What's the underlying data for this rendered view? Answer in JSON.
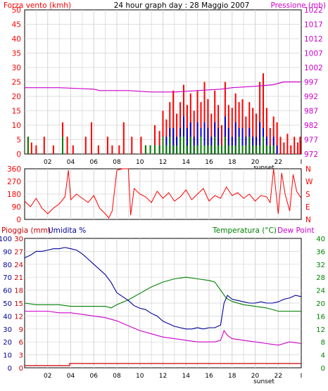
{
  "header": {
    "left_label": "Forza vento (kmh)",
    "title": "24 hour graph day : 28 Maggio 2007",
    "right_label": "Pressione (mb)"
  },
  "colors": {
    "wind": "#ff0000",
    "gust": "#0000c8",
    "wind_secondary": "#008000",
    "pressure": "#cc00cc",
    "direction": "#ff0000",
    "humidity": "#000099",
    "temperature": "#008000",
    "dewpoint": "#cc00cc",
    "rain": "#cc0000",
    "grid": "#d4d4d4"
  },
  "x_axis": {
    "ticks": [
      "02",
      "04",
      "06",
      "08",
      "10",
      "12",
      "14",
      "16",
      "18",
      "20",
      "22",
      "I"
    ],
    "sunset_label": "sunset"
  },
  "chart_data": [
    {
      "id": "wind",
      "type": "bar",
      "title": "24 hour graph day : 28 Maggio 2007",
      "ylabel_left": "Forza vento (kmh)",
      "ylabel_right": "Pressione (mb)",
      "ylim_left": [
        0,
        50
      ],
      "yticks_left": [
        "0",
        "5",
        "10",
        "15",
        "20",
        "25",
        "30",
        "35",
        "40",
        "45",
        "50"
      ],
      "ylim_right": [
        972,
        1022
      ],
      "yticks_right": [
        "972",
        "977",
        "982",
        "987",
        "992",
        "997",
        "1002",
        "1007",
        "1012",
        "1017",
        "1022"
      ],
      "grid": true,
      "x_hours": [
        0.3,
        0.6,
        1.0,
        1.7,
        2.5,
        3.3,
        3.7,
        4.2,
        5.3,
        5.8,
        6.4,
        7.2,
        7.6,
        8.2,
        8.6,
        9.3,
        10.1,
        10.5,
        10.9,
        11.3,
        11.7,
        12.0,
        12.3,
        12.6,
        12.9,
        13.2,
        13.5,
        13.8,
        14.1,
        14.4,
        14.7,
        15.0,
        15.3,
        15.6,
        15.9,
        16.2,
        16.5,
        16.8,
        17.1,
        17.4,
        17.7,
        18.0,
        18.3,
        18.6,
        18.9,
        19.2,
        19.5,
        19.8,
        20.1,
        20.4,
        20.7,
        21.0,
        21.3,
        21.6,
        21.9,
        22.2,
        22.5,
        22.8,
        23.1,
        23.4,
        23.7,
        23.9
      ],
      "series": [
        {
          "name": "Forza vento (kmh)",
          "role": "wind",
          "values": [
            6,
            4,
            3,
            6,
            3,
            11,
            6,
            3,
            6,
            11,
            3,
            6,
            3,
            3,
            11,
            6,
            6,
            3,
            3,
            10,
            8,
            15,
            12,
            18,
            22,
            14,
            18,
            24,
            17,
            21,
            15,
            22,
            18,
            25,
            19,
            14,
            22,
            17,
            10,
            25,
            17,
            16,
            21,
            18,
            19,
            13,
            18,
            16,
            14,
            25,
            28,
            16,
            9,
            13,
            11,
            6,
            4,
            7,
            3,
            6,
            4,
            6
          ]
        },
        {
          "name": "",
          "role": "gust",
          "values": [
            0,
            0,
            0,
            0,
            0,
            0,
            0,
            0,
            0,
            0,
            0,
            0,
            0,
            0,
            0,
            0,
            0,
            0,
            0,
            3,
            3,
            6,
            6,
            9,
            9,
            6,
            9,
            13,
            9,
            11,
            6,
            11,
            9,
            11,
            9,
            6,
            11,
            9,
            3,
            13,
            9,
            6,
            11,
            9,
            9,
            6,
            9,
            6,
            6,
            11,
            9,
            6,
            3,
            6,
            3,
            0,
            0,
            0,
            0,
            0,
            0,
            0
          ]
        },
        {
          "name": "",
          "role": "wind_secondary",
          "values": [
            6,
            0,
            0,
            0,
            0,
            6,
            0,
            0,
            0,
            0,
            0,
            0,
            0,
            0,
            0,
            0,
            0,
            3,
            3,
            3,
            3,
            6,
            3,
            6,
            3,
            3,
            6,
            6,
            3,
            6,
            3,
            3,
            6,
            3,
            3,
            3,
            6,
            3,
            3,
            6,
            3,
            3,
            3,
            6,
            3,
            3,
            6,
            3,
            3,
            3,
            6,
            3,
            3,
            3,
            0,
            0,
            0,
            0,
            0,
            0,
            0,
            0
          ]
        },
        {
          "name": "Pressione (mb)",
          "role": "pressure",
          "x": [
            0,
            3,
            6,
            6.5,
            9,
            11,
            13,
            15,
            17,
            18,
            20,
            21.5,
            22.5,
            24
          ],
          "values": [
            995,
            995,
            994.5,
            994,
            994,
            993.5,
            993.5,
            994,
            994.5,
            995,
            995.5,
            996,
            997,
            997
          ]
        }
      ]
    },
    {
      "id": "direction",
      "type": "line",
      "ylim_left": [
        0,
        360
      ],
      "yticks_left": [
        "0",
        "90",
        "180",
        "270",
        "360"
      ],
      "yticks_right": [
        "N",
        "E",
        "S",
        "W",
        "N"
      ],
      "grid": true,
      "series": [
        {
          "name": "",
          "role": "direction",
          "x": [
            0,
            0.5,
            1.0,
            1.5,
            2.0,
            2.5,
            3.0,
            3.5,
            3.8,
            4.0,
            4.5,
            5.0,
            5.5,
            6.0,
            6.5,
            7.0,
            7.3,
            7.6,
            8.0,
            8.5,
            9.0,
            9.2,
            9.5,
            10.0,
            10.5,
            11.0,
            11.5,
            12.0,
            12.5,
            13.0,
            13.5,
            14.0,
            14.5,
            15.0,
            15.5,
            16.0,
            16.5,
            17.0,
            17.5,
            18.0,
            18.5,
            19.0,
            19.5,
            20.0,
            20.5,
            21.0,
            21.3,
            21.6,
            22.0,
            22.3,
            22.6,
            23.0,
            23.3,
            23.6,
            24.0
          ],
          "values": [
            130,
            90,
            150,
            80,
            40,
            80,
            110,
            160,
            350,
            140,
            180,
            150,
            120,
            170,
            80,
            40,
            10,
            60,
            350,
            360,
            360,
            30,
            220,
            180,
            160,
            120,
            200,
            150,
            190,
            130,
            160,
            210,
            140,
            180,
            220,
            130,
            170,
            150,
            230,
            170,
            190,
            150,
            180,
            130,
            170,
            160,
            120,
            360,
            40,
            330,
            180,
            60,
            320,
            200,
            150
          ]
        }
      ]
    },
    {
      "id": "temperature",
      "type": "line",
      "ylabel_left_rain": "Pioggia (mm)",
      "ylabel_left_humidity": "Umidita %",
      "ylabel_right_temp": "Temperatura (°C)",
      "ylabel_right_dew": "Dew Point",
      "ylim_humidity": [
        0,
        100
      ],
      "yticks_humidity": [
        "0",
        "10",
        "20",
        "30",
        "40",
        "50",
        "60",
        "70",
        "80",
        "90",
        "100"
      ],
      "ylim_rain": [
        0,
        30
      ],
      "yticks_rain": [
        "0",
        "3",
        "6",
        "9",
        "12",
        "15",
        "18",
        "21",
        "24",
        "27",
        "30"
      ],
      "ylim_temp": [
        0,
        40
      ],
      "yticks_temp": [
        "0",
        "4",
        "8",
        "12",
        "16",
        "20",
        "24",
        "28",
        "32",
        "36",
        "40"
      ],
      "grid": true,
      "series": [
        {
          "name": "Umidita %",
          "role": "humidity",
          "x": [
            0,
            0.5,
            1.0,
            1.5,
            2.0,
            2.5,
            3.0,
            3.5,
            4.0,
            4.5,
            5.0,
            5.5,
            6.0,
            6.5,
            7.0,
            7.5,
            8.0,
            8.5,
            9.0,
            9.5,
            10.0,
            10.5,
            11.0,
            11.5,
            12.0,
            12.5,
            13.0,
            13.5,
            14.0,
            14.5,
            15.0,
            15.5,
            16.0,
            16.5,
            17.0,
            17.3,
            17.6,
            18.0,
            18.5,
            19.0,
            19.5,
            20.0,
            20.5,
            21.0,
            21.5,
            22.0,
            22.5,
            23.0,
            23.5,
            24.0
          ],
          "values": [
            85,
            87,
            90,
            90,
            91,
            92,
            92,
            93,
            92,
            91,
            88,
            84,
            80,
            76,
            72,
            66,
            58,
            55,
            52,
            48,
            46,
            45,
            42,
            40,
            36,
            34,
            32,
            31,
            30,
            30,
            31,
            30,
            31,
            31,
            33,
            50,
            56,
            53,
            52,
            51,
            50,
            50,
            51,
            50,
            50,
            51,
            53,
            54,
            56,
            55
          ]
        },
        {
          "name": "Temperatura (°C)",
          "role": "temperature",
          "x": [
            0,
            1,
            2,
            3,
            4,
            5,
            6,
            7,
            7.5,
            8,
            9,
            10,
            11,
            12,
            13,
            14,
            15,
            16,
            16.5,
            17,
            17.5,
            18,
            19,
            20,
            21,
            22,
            23,
            24
          ],
          "values": [
            20,
            19.5,
            19.5,
            19.5,
            19,
            19,
            19,
            19,
            18.5,
            19.5,
            21,
            23,
            25,
            26.5,
            27.5,
            28,
            27.5,
            27,
            26.5,
            24,
            21.5,
            20.5,
            19.5,
            19,
            18.5,
            17.5,
            17.5,
            17.5
          ]
        },
        {
          "name": "Dew Point",
          "role": "dewpoint",
          "x": [
            0,
            1,
            2,
            3,
            4,
            5,
            6,
            7,
            8,
            9,
            10,
            11,
            12,
            13,
            14,
            15,
            16,
            16.5,
            17,
            17.3,
            17.6,
            18,
            19,
            20,
            21,
            22,
            23,
            24
          ],
          "values": [
            17.5,
            17.5,
            17.5,
            17,
            17,
            16.5,
            16,
            15.5,
            14.5,
            13,
            11.5,
            10.5,
            9.5,
            9,
            8.5,
            8,
            8,
            8,
            8.5,
            11.5,
            10,
            9,
            8.5,
            8,
            7.5,
            7,
            8,
            7.5
          ]
        },
        {
          "name": "Pioggia (mm)",
          "role": "rain",
          "x": [
            0,
            3.9,
            3.9,
            24
          ],
          "values": [
            0.5,
            0.5,
            1,
            1
          ]
        }
      ]
    }
  ]
}
